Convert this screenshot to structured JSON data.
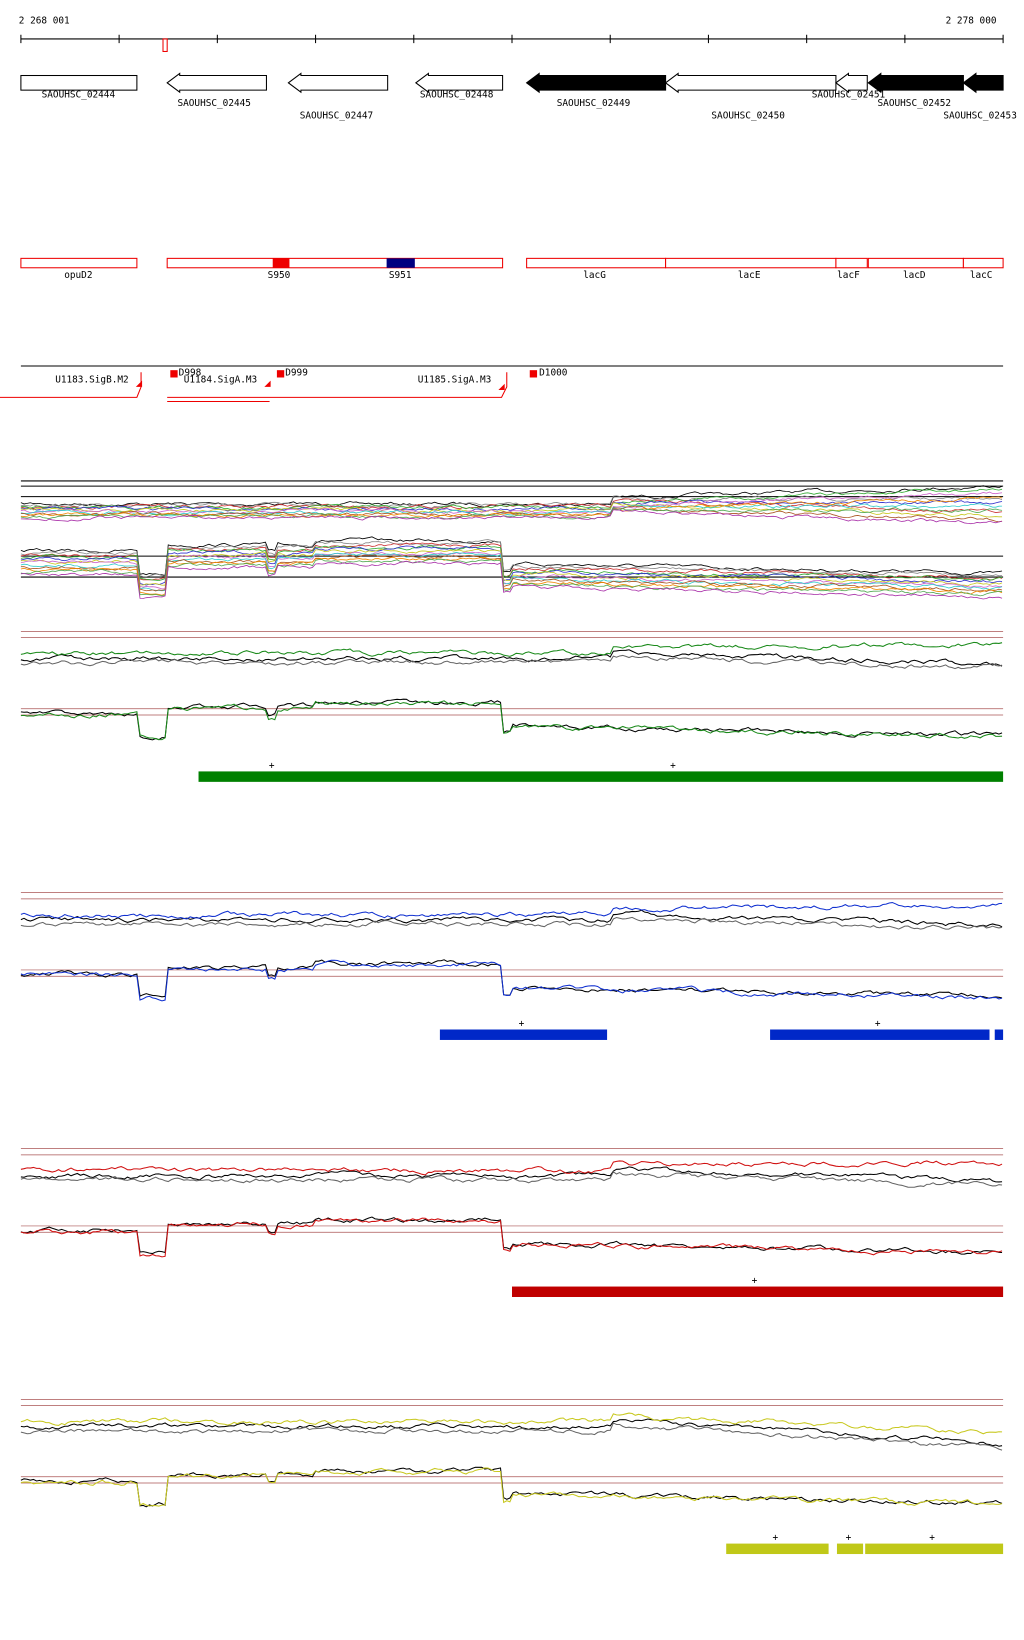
{
  "ruler": {
    "start": "2 268 001",
    "end": "2 278 000"
  },
  "genes": [
    {
      "label": "SAOUHSC_02444"
    },
    {
      "label": "SAOUHSC_02445"
    },
    {
      "label": "SAOUHSC_02447"
    },
    {
      "label": "SAOUHSC_02448"
    },
    {
      "label": "SAOUHSC_02449"
    },
    {
      "label": "SAOUHSC_02450"
    },
    {
      "label": "SAOUHSC_02451"
    },
    {
      "label": "SAOUHSC_02452"
    },
    {
      "label": "SAOUHSC_02453"
    }
  ],
  "features": [
    {
      "label": "opuD2"
    },
    {
      "label": "S950"
    },
    {
      "label": "S951"
    },
    {
      "label": "lacG"
    },
    {
      "label": "lacE"
    },
    {
      "label": "lacF"
    },
    {
      "label": "lacD"
    },
    {
      "label": "lacC"
    }
  ],
  "promoters": [
    {
      "label": "U1183.SigB.M2"
    },
    {
      "label": "D998"
    },
    {
      "label": "U1184.SigA.M3"
    },
    {
      "label": "D999"
    },
    {
      "label": "U1185.SigA.M3"
    },
    {
      "label": "D1000"
    }
  ],
  "tracks": [
    {
      "color": "#1a8a1a",
      "bar_color": "#008000",
      "markers": [
        "+",
        "+"
      ]
    },
    {
      "color": "#1030d0",
      "bar_color": "#0028c8",
      "markers": [
        "+",
        "+"
      ]
    },
    {
      "color": "#d01010",
      "bar_color": "#c00000",
      "markers": [
        "+"
      ]
    },
    {
      "color": "#c8c820",
      "bar_color": "#c0c818",
      "markers": [
        "+",
        "+",
        "+"
      ]
    }
  ]
}
